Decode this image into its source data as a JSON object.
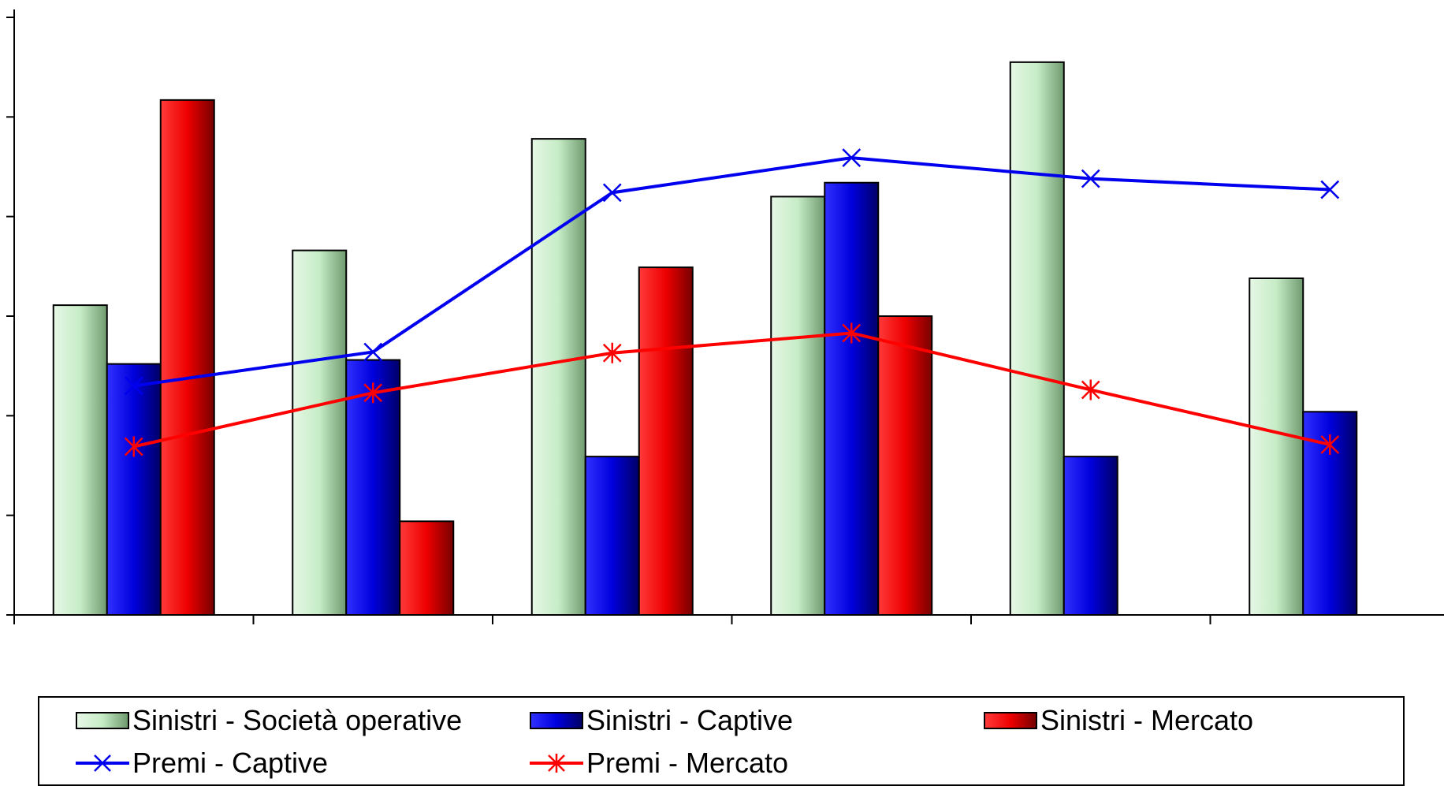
{
  "chart_data": {
    "type": "bar",
    "title": "",
    "xlabel": "",
    "ylabel": "",
    "categories": [
      "",
      "",
      "",
      "",
      "",
      ""
    ],
    "ylim": [
      0,
      6
    ],
    "grid": false,
    "legend_position": "bottom",
    "series": [
      {
        "name": "Sinistri - Società operative",
        "kind": "bar",
        "color": "#c6ecc6",
        "values": [
          3.11,
          3.66,
          4.78,
          4.2,
          5.55,
          3.38
        ]
      },
      {
        "name": "Sinistri - Captive",
        "kind": "bar",
        "color": "#0000dd",
        "values": [
          2.52,
          2.56,
          1.59,
          4.34,
          1.59,
          2.04
        ]
      },
      {
        "name": "Sinistri - Mercato",
        "kind": "bar",
        "color": "#ee0000",
        "values": [
          5.17,
          0.94,
          3.49,
          3.0,
          null,
          null
        ]
      },
      {
        "name": "Premi - Captive",
        "kind": "line",
        "color": "#0000ee",
        "marker": "x",
        "values": [
          2.3,
          2.64,
          4.24,
          4.59,
          4.38,
          4.27
        ]
      },
      {
        "name": "Premi - Mercato",
        "kind": "line",
        "color": "#ff0000",
        "marker": "asterisk",
        "values": [
          1.69,
          2.23,
          2.63,
          2.83,
          2.26,
          1.71
        ]
      }
    ]
  },
  "legend": {
    "items": [
      {
        "label": "Sinistri - Società operative",
        "type": "bar",
        "color": "#c6ecc6"
      },
      {
        "label": "Sinistri - Captive",
        "type": "bar",
        "color": "#0000dd"
      },
      {
        "label": "Sinistri - Mercato",
        "type": "bar",
        "color": "#ee0000"
      },
      {
        "label": "Premi - Captive",
        "type": "line",
        "color": "#0000ee",
        "marker": "x"
      },
      {
        "label": "Premi - Mercato",
        "type": "line",
        "color": "#ff0000",
        "marker": "asterisk"
      }
    ]
  }
}
